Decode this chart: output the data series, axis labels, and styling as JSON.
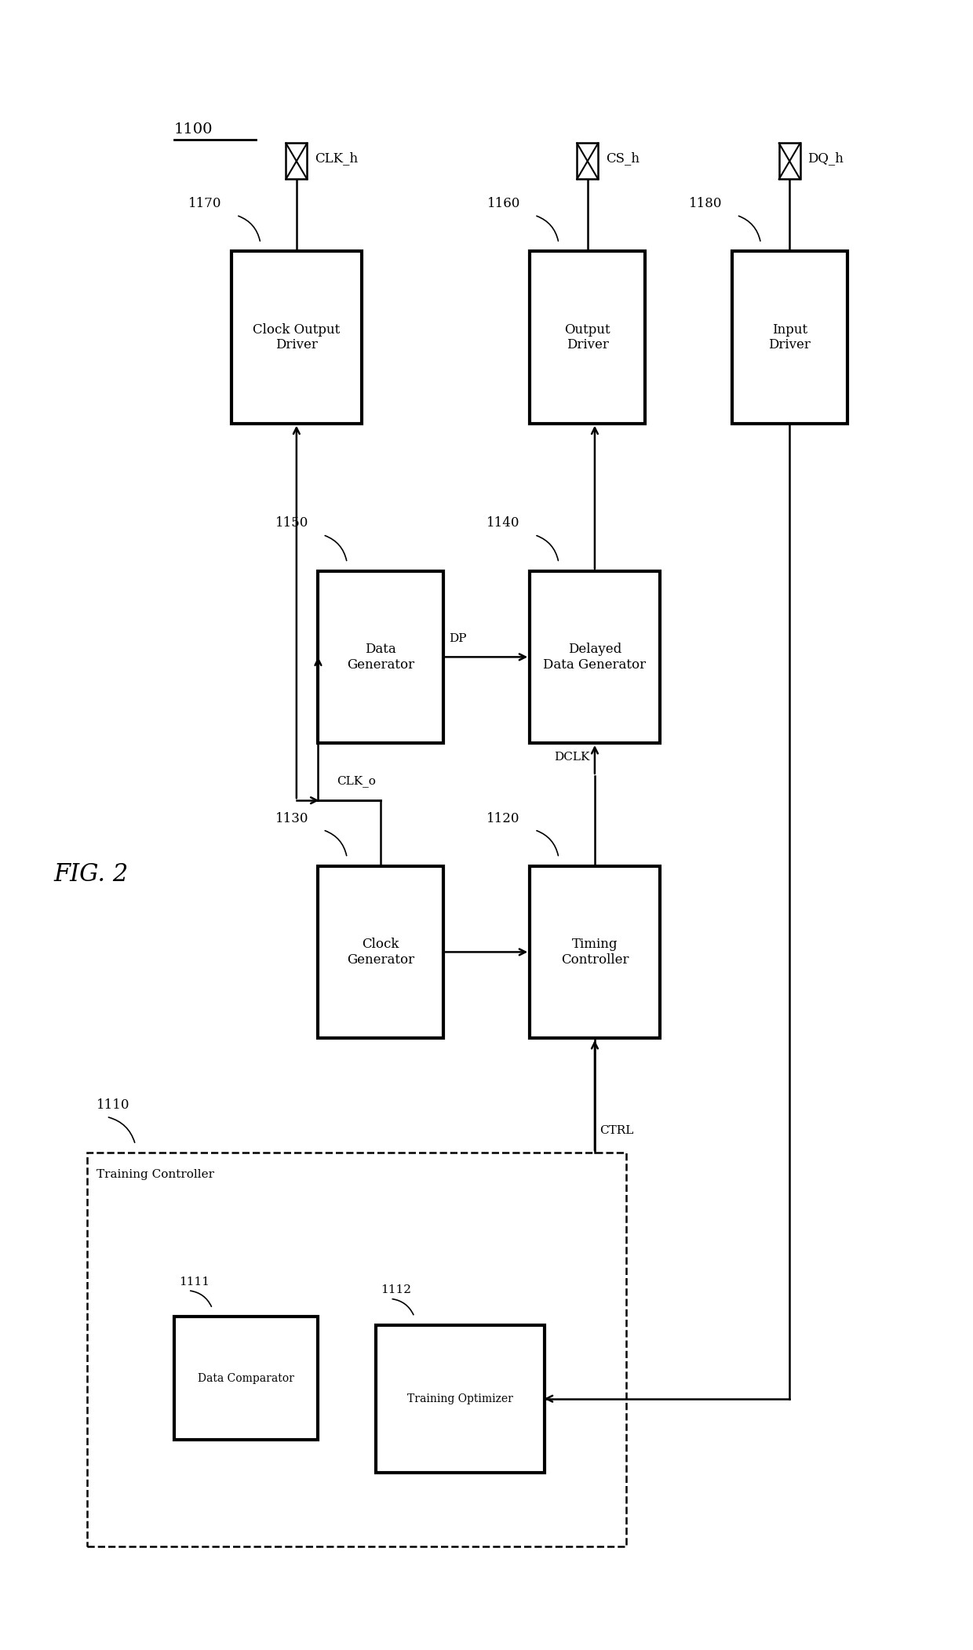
{
  "bg_color": "#ffffff",
  "fig_label": "FIG. 2",
  "system_label": "1100",
  "blocks": {
    "clock_output_driver": {
      "label": "Clock Output\nDriver",
      "num": "1170"
    },
    "output_driver": {
      "label": "Output\nDriver",
      "num": "1160"
    },
    "input_driver": {
      "label": "Input\nDriver",
      "num": "1180"
    },
    "data_generator": {
      "label": "Data\nGenerator",
      "num": "1150"
    },
    "delayed_data_gen": {
      "label": "Delayed\nData Generator",
      "num": "1140"
    },
    "clock_generator": {
      "label": "Clock\nGenerator",
      "num": "1130"
    },
    "timing_controller": {
      "label": "Timing\nController",
      "num": "1120"
    },
    "data_comparator": {
      "label": "Data Comparator",
      "num": "1111"
    },
    "training_optimizer": {
      "label": "Training Optimizer",
      "num": "1112"
    },
    "training_controller": {
      "label": "Training Controller",
      "num": "1110"
    }
  },
  "terminals": {
    "CLK_h": "clock_output_driver",
    "CS_h": "output_driver",
    "DQ_h": "input_driver"
  }
}
